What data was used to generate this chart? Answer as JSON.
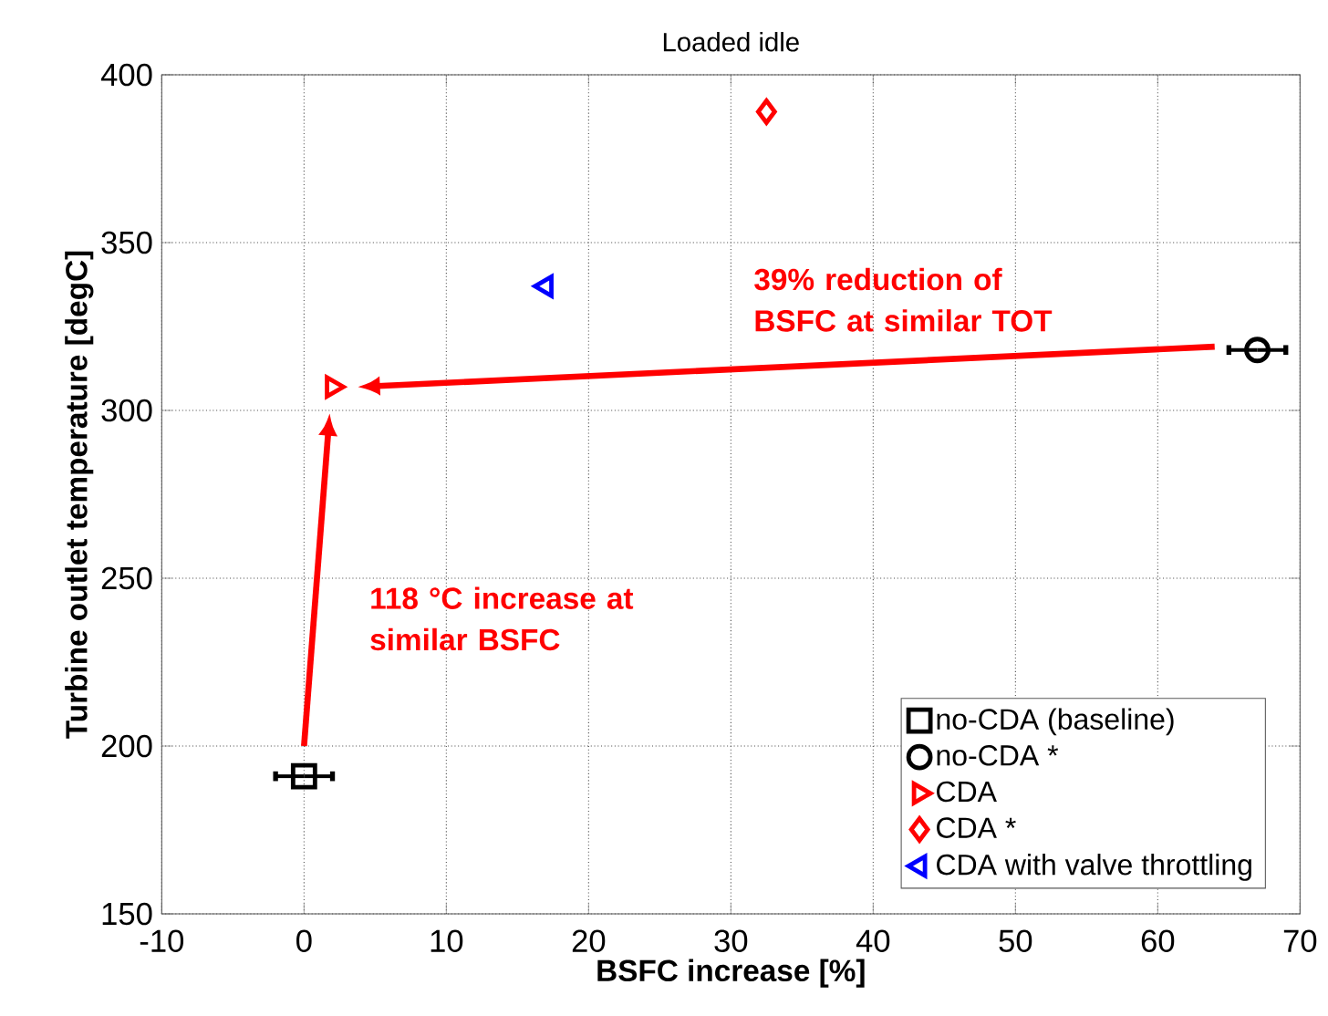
{
  "chart_data": {
    "type": "scatter",
    "title": "Loaded idle",
    "xlabel": "BSFC increase [%]",
    "ylabel": "Turbine outlet temperature [degC]",
    "xlim": [
      -10,
      70
    ],
    "xticks": [
      -10,
      0,
      10,
      20,
      30,
      40,
      50,
      60,
      70
    ],
    "ylim": [
      150,
      400
    ],
    "yticks": [
      150,
      200,
      250,
      300,
      350,
      400
    ],
    "grid": true,
    "legend": "bottom right",
    "series": [
      {
        "name": "no-CDA (baseline)",
        "color": "#000000",
        "marker": "square",
        "x": [
          0
        ],
        "values": [
          191
        ],
        "xerrors": [
          2
        ]
      },
      {
        "name": "no-CDA *",
        "color": "#000000",
        "marker": "circle",
        "x": [
          67
        ],
        "values": [
          318
        ],
        "xerrors": [
          2
        ]
      },
      {
        "name": "CDA",
        "color": "#ff0000",
        "marker": "triangle",
        "x": [
          2
        ],
        "values": [
          307
        ]
      },
      {
        "name": "CDA *",
        "color": "#ff0000",
        "marker": "diamond",
        "x": [
          32.5
        ],
        "values": [
          389
        ]
      },
      {
        "name": "CDA with valve throttling",
        "color": "#0000ff",
        "marker": "triangle-left",
        "x": [
          17
        ],
        "values": [
          337
        ]
      }
    ],
    "annotations": [
      "39% reduction of BSFC at similar TOT",
      "118 °C increase at similar BSFC"
    ]
  }
}
